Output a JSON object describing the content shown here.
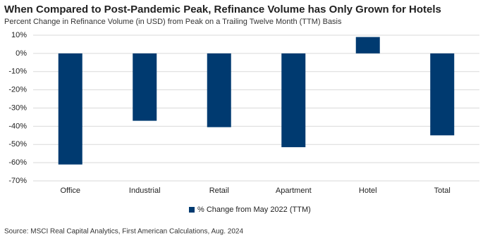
{
  "chart_data": {
    "type": "bar",
    "title": "When Compared to Post-Pandemic Peak, Refinance Volume has Only Grown for Hotels",
    "subtitle": "Percent Change in Refinance Volume (in USD) from Peak on a Trailing Twelve Month (TTM) Basis",
    "source": "Source: MSCI Real Capital Analytics, First American Calculations, Aug. 2024",
    "categories": [
      "Office",
      "Industrial",
      "Retail",
      "Apartment",
      "Hotel",
      "Total"
    ],
    "series": [
      {
        "name": "% Change from May 2022 (TTM)",
        "color": "#003a70",
        "values": [
          -61,
          -37,
          -40.5,
          -51.5,
          9,
          -45
        ]
      }
    ],
    "ylim": [
      -70,
      10
    ],
    "yticks": [
      {
        "value": 10,
        "label": "10%"
      },
      {
        "value": 0,
        "label": "0%"
      },
      {
        "value": -10,
        "label": "-10%"
      },
      {
        "value": -20,
        "label": "-20%"
      },
      {
        "value": -30,
        "label": "-30%"
      },
      {
        "value": -40,
        "label": "-40%"
      },
      {
        "value": -50,
        "label": "-50%"
      },
      {
        "value": -60,
        "label": "-60%"
      },
      {
        "value": -70,
        "label": "-70%"
      }
    ],
    "grid": true,
    "legend": "bottom"
  }
}
